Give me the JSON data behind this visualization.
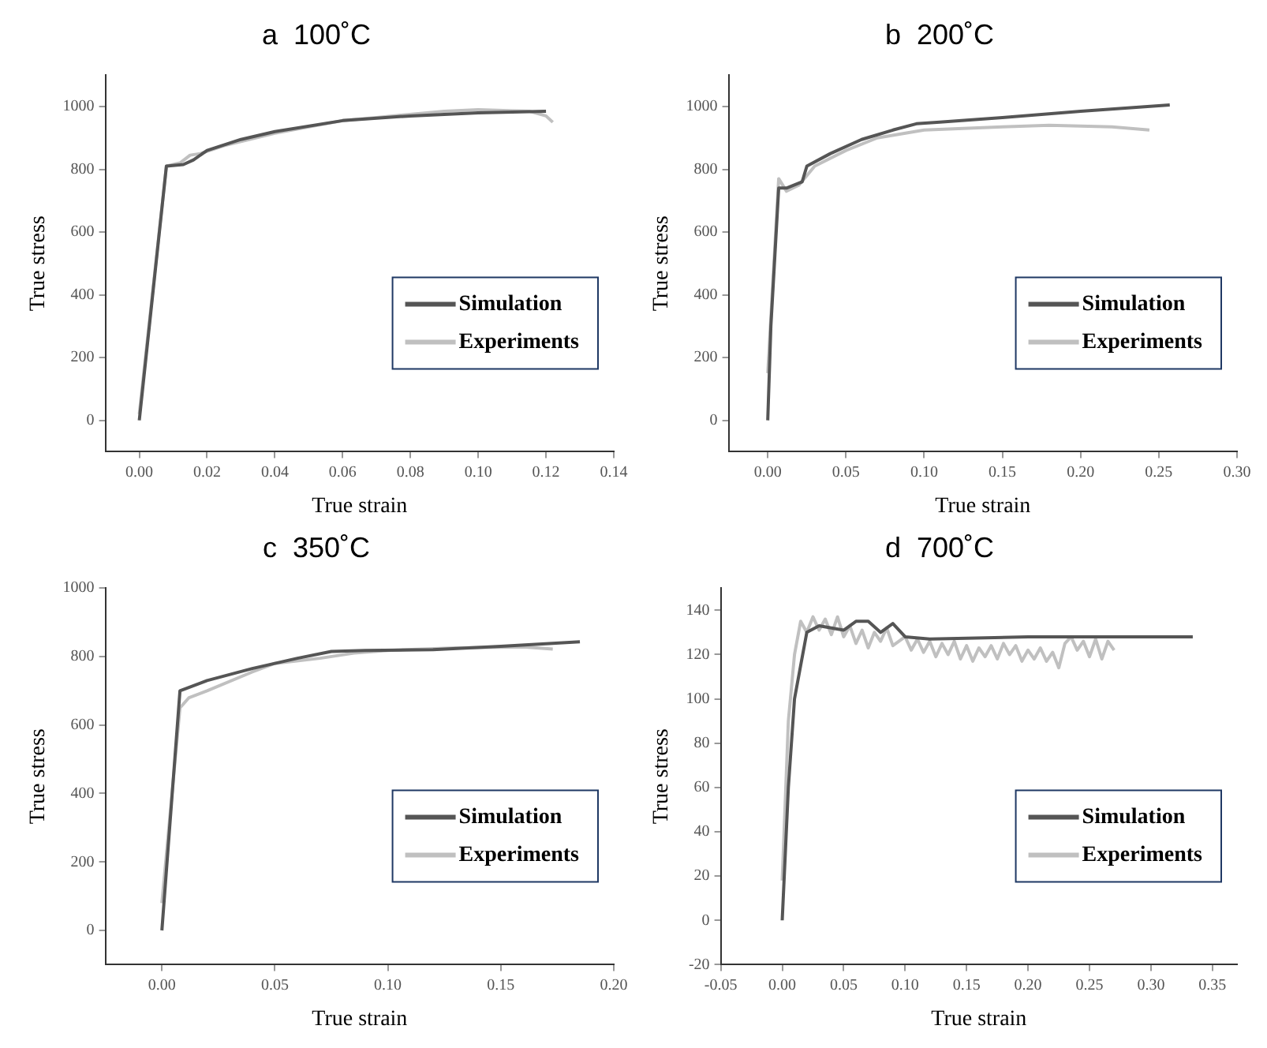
{
  "chart_data": [
    {
      "type": "line",
      "title": "a  100˚C",
      "xlabel": "True strain",
      "ylabel": "True stress",
      "xlim": [
        -0.01,
        0.14
      ],
      "ylim": [
        -100,
        1100
      ],
      "xticks": [
        {
          "value": 0,
          "label": "0.00"
        },
        {
          "value": 0.02,
          "label": "0.02"
        },
        {
          "value": 0.04,
          "label": "0.04"
        },
        {
          "value": 0.06,
          "label": "0.06"
        },
        {
          "value": 0.08,
          "label": "0.08"
        },
        {
          "value": 0.1,
          "label": "0.10"
        },
        {
          "value": 0.12,
          "label": "0.12"
        },
        {
          "value": 0.14,
          "label": "0.14"
        }
      ],
      "yticks": [
        0,
        200,
        400,
        600,
        800,
        1000
      ],
      "grid": false,
      "legend": "bottom right",
      "marker": "none",
      "line_style": "solid",
      "series": [
        {
          "name": "Simulation",
          "color": "#555555",
          "x": [
            0,
            0.008,
            0.013,
            0.016,
            0.02,
            0.03,
            0.04,
            0.06,
            0.08,
            0.1,
            0.12
          ],
          "values": [
            0,
            810,
            815,
            830,
            860,
            895,
            920,
            955,
            970,
            980,
            985
          ]
        },
        {
          "name": "Experiments",
          "color": "#c0c0c0",
          "x": [
            0,
            0.008,
            0.012,
            0.015,
            0.018,
            0.025,
            0.04,
            0.06,
            0.07,
            0.09,
            0.1,
            0.115,
            0.12,
            0.122
          ],
          "values": [
            20,
            810,
            820,
            845,
            850,
            875,
            915,
            955,
            965,
            985,
            990,
            985,
            970,
            950
          ]
        }
      ]
    },
    {
      "type": "line",
      "title": "b  200˚C",
      "xlabel": "True strain",
      "ylabel": "True stress",
      "xlim": [
        -0.025,
        0.3
      ],
      "ylim": [
        -100,
        1100
      ],
      "xticks": [
        {
          "value": 0,
          "label": "0.00"
        },
        {
          "value": 0.05,
          "label": "0.05"
        },
        {
          "value": 0.1,
          "label": "0.10"
        },
        {
          "value": 0.15,
          "label": "0.15"
        },
        {
          "value": 0.2,
          "label": "0.20"
        },
        {
          "value": 0.25,
          "label": "0.25"
        },
        {
          "value": 0.3,
          "label": "0.30"
        }
      ],
      "yticks": [
        0,
        200,
        400,
        600,
        800,
        1000
      ],
      "grid": false,
      "legend": "bottom right",
      "marker": "none",
      "line_style": "solid",
      "series": [
        {
          "name": "Simulation",
          "color": "#555555",
          "x": [
            0,
            0.002,
            0.007,
            0.012,
            0.022,
            0.025,
            0.04,
            0.06,
            0.08,
            0.095,
            0.11,
            0.15,
            0.2,
            0.257
          ],
          "values": [
            0,
            300,
            740,
            740,
            760,
            810,
            850,
            895,
            925,
            945,
            950,
            965,
            985,
            1005
          ]
        },
        {
          "name": "Experiments",
          "color": "#c0c0c0",
          "x": [
            0,
            0.007,
            0.012,
            0.02,
            0.03,
            0.05,
            0.07,
            0.1,
            0.15,
            0.18,
            0.22,
            0.244
          ],
          "values": [
            150,
            770,
            730,
            750,
            810,
            860,
            900,
            925,
            935,
            940,
            935,
            925
          ]
        }
      ]
    },
    {
      "type": "line",
      "title": "c  350˚C",
      "xlabel": "True strain",
      "ylabel": "True stress",
      "xlim": [
        -0.025,
        0.2
      ],
      "ylim": [
        -100,
        1000
      ],
      "xticks": [
        {
          "value": 0,
          "label": "0.00"
        },
        {
          "value": 0.05,
          "label": "0.05"
        },
        {
          "value": 0.1,
          "label": "0.10"
        },
        {
          "value": 0.15,
          "label": "0.15"
        },
        {
          "value": 0.2,
          "label": "0.20"
        }
      ],
      "yticks": [
        0,
        200,
        400,
        600,
        800,
        1000
      ],
      "grid": false,
      "legend": "bottom right",
      "marker": "none",
      "line_style": "solid",
      "series": [
        {
          "name": "Simulation",
          "color": "#555555",
          "x": [
            0,
            0.008,
            0.02,
            0.04,
            0.06,
            0.075,
            0.09,
            0.12,
            0.15,
            0.185
          ],
          "values": [
            0,
            700,
            730,
            765,
            795,
            815,
            818,
            820,
            830,
            843
          ]
        },
        {
          "name": "Experiments",
          "color": "#c0c0c0",
          "x": [
            0,
            0.008,
            0.012,
            0.02,
            0.04,
            0.05,
            0.07,
            0.085,
            0.1,
            0.13,
            0.16,
            0.173
          ],
          "values": [
            80,
            650,
            680,
            700,
            755,
            780,
            795,
            810,
            818,
            825,
            828,
            822
          ]
        }
      ]
    },
    {
      "type": "line",
      "title": "d  700˚C",
      "xlabel": "True strain",
      "ylabel": "True stress",
      "xlim": [
        -0.05,
        0.37
      ],
      "ylim": [
        -20,
        150
      ],
      "xticks": [
        {
          "value": -0.05,
          "label": "-0.05"
        },
        {
          "value": 0,
          "label": "0.00"
        },
        {
          "value": 0.05,
          "label": "0.05"
        },
        {
          "value": 0.1,
          "label": "0.10"
        },
        {
          "value": 0.15,
          "label": "0.15"
        },
        {
          "value": 0.2,
          "label": "0.20"
        },
        {
          "value": 0.25,
          "label": "0.25"
        },
        {
          "value": 0.3,
          "label": "0.30"
        },
        {
          "value": 0.35,
          "label": "0.35"
        }
      ],
      "yticks": [
        -20,
        0,
        20,
        40,
        60,
        80,
        100,
        120,
        140
      ],
      "grid": false,
      "legend": "bottom right",
      "marker": "none",
      "line_style": "solid",
      "series": [
        {
          "name": "Simulation",
          "color": "#555555",
          "x": [
            0,
            0.005,
            0.01,
            0.015,
            0.02,
            0.03,
            0.05,
            0.06,
            0.07,
            0.08,
            0.09,
            0.1,
            0.12,
            0.2,
            0.334
          ],
          "values": [
            0,
            60,
            100,
            115,
            130,
            133,
            131,
            135,
            135,
            130,
            134,
            128,
            127,
            128,
            128
          ]
        },
        {
          "name": "Experiments",
          "color": "#c0c0c0",
          "x": [
            0,
            0.005,
            0.01,
            0.015,
            0.02,
            0.025,
            0.03,
            0.035,
            0.04,
            0.045,
            0.05,
            0.055,
            0.06,
            0.065,
            0.07,
            0.075,
            0.08,
            0.085,
            0.09,
            0.1,
            0.105,
            0.11,
            0.115,
            0.12,
            0.125,
            0.13,
            0.135,
            0.14,
            0.145,
            0.15,
            0.155,
            0.16,
            0.165,
            0.17,
            0.175,
            0.18,
            0.185,
            0.19,
            0.195,
            0.2,
            0.205,
            0.21,
            0.215,
            0.22,
            0.225,
            0.23,
            0.235,
            0.24,
            0.245,
            0.25,
            0.255,
            0.26,
            0.265,
            0.27
          ],
          "values": [
            18,
            90,
            120,
            135,
            130,
            137,
            131,
            136,
            129,
            137,
            128,
            133,
            125,
            131,
            123,
            130,
            126,
            132,
            124,
            128,
            122,
            127,
            121,
            126,
            119,
            125,
            120,
            126,
            118,
            124,
            117,
            123,
            119,
            124,
            118,
            125,
            120,
            124,
            117,
            122,
            118,
            123,
            117,
            121,
            114,
            125,
            128,
            122,
            126,
            119,
            127,
            118,
            126,
            122
          ]
        }
      ]
    }
  ]
}
